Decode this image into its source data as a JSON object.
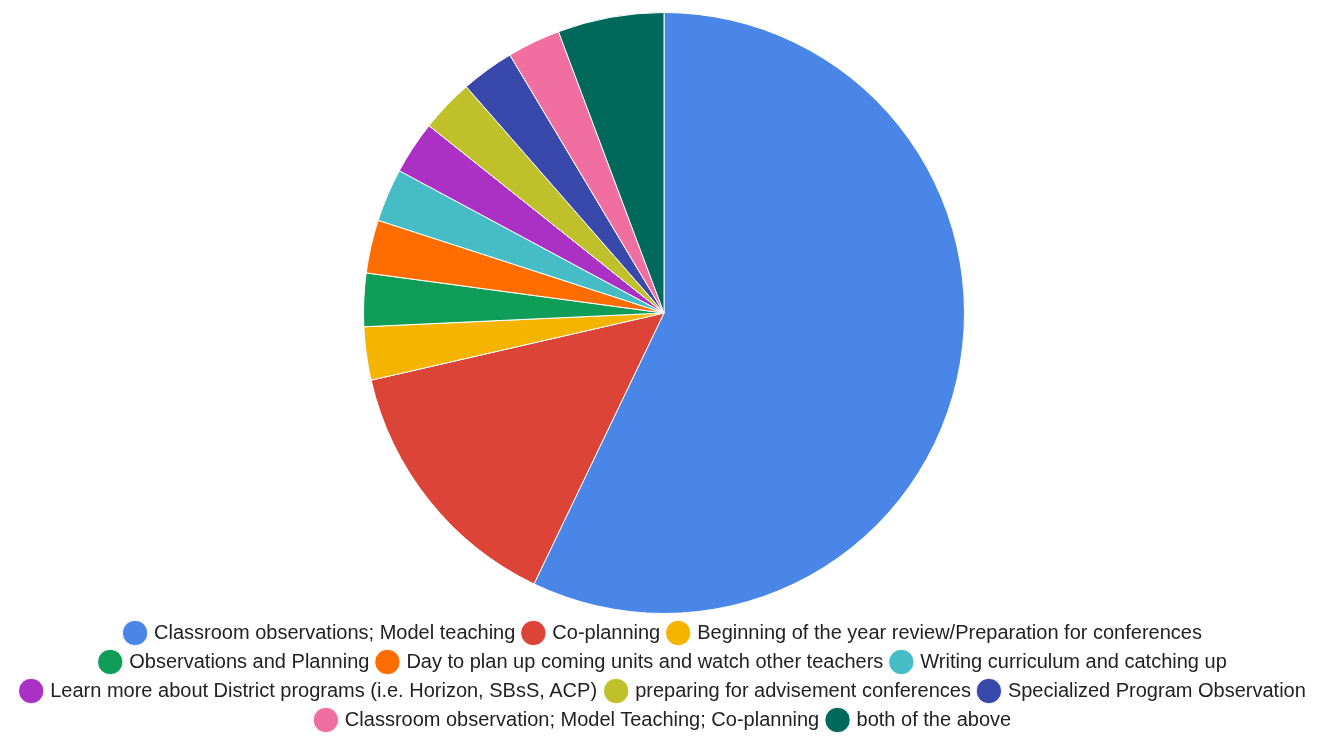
{
  "chart_data": {
    "type": "pie",
    "categories": [
      "Classroom observations; Model teaching",
      "Co-planning",
      "Beginning of the year review/Preparation for conferences",
      "Observations and Planning",
      "Day to plan up coming units and watch other teachers",
      "Writing curriculum and catching up",
      "Learn more about District programs (i.e. Horizon, SBsS, ACP)",
      "preparing for advisement conferences",
      "Specialized Program Observation",
      "Classroom observation; Model Teaching; Co-planning",
      "both of the above"
    ],
    "values": [
      57.12,
      14.29,
      2.86,
      2.86,
      2.86,
      2.86,
      2.86,
      2.86,
      2.86,
      2.86,
      5.71
    ],
    "colors": [
      "#4a86e8",
      "#db4437",
      "#f4b400",
      "#0f9d58",
      "#ff6d00",
      "#46bdc6",
      "#ab30c4",
      "#c0c02a",
      "#3949ab",
      "#f06fa0",
      "#00695c"
    ],
    "legend": "bottom"
  }
}
